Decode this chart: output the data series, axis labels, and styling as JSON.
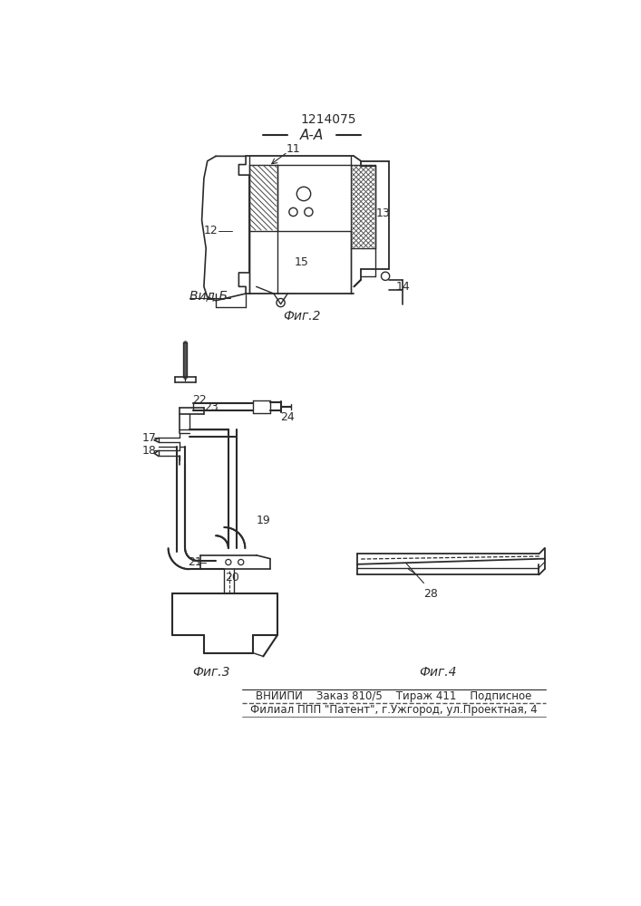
{
  "patent_number": "1214075",
  "section_label": "А-А",
  "fig2_label": "Фиг.2",
  "fig3_label": "Фиг.3",
  "fig4_label": "Фиг.4",
  "vid_b_label": "Вид Б",
  "footer_line1": "ВНИИПИ    Заказ 810/5    Тираж 411    Подписное",
  "footer_line2": "Филиал ППП \"Патент\", г.Ужгород, ул.Проектная, 4",
  "bg_color": "#ffffff",
  "line_color": "#2a2a2a"
}
